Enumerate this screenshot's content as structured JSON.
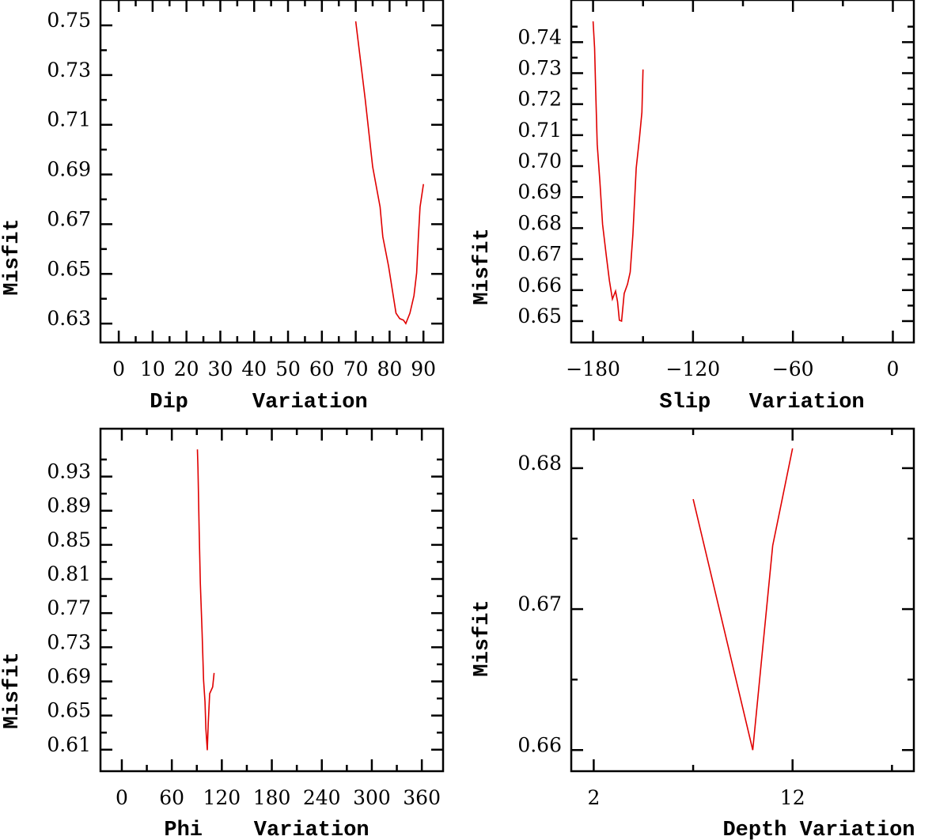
{
  "colors": {
    "line": "#e00000",
    "axes": "#000000",
    "background": "#ffffff"
  },
  "chart_data": [
    {
      "type": "line",
      "title": "",
      "xlabel": "Dip     Variation",
      "ylabel": "Misfit",
      "xlim": [
        -5.4,
        95.8
      ],
      "ylim": [
        0.6224,
        0.7602
      ],
      "x_major_ticks": [
        0,
        10,
        20,
        30,
        40,
        50,
        60,
        70,
        80,
        90
      ],
      "x_tick_labels": [
        "0",
        "10",
        "20",
        "30",
        "40",
        "50",
        "60",
        "70",
        "80",
        "90"
      ],
      "x_minor_ticks": [
        5,
        15,
        25,
        35,
        45,
        55,
        65,
        75,
        85
      ],
      "y_major_ticks": [
        0.63,
        0.65,
        0.67,
        0.69,
        0.71,
        0.73,
        0.75
      ],
      "y_tick_labels": [
        "0.63",
        "0.65",
        "0.67",
        "0.69",
        "0.71",
        "0.73",
        "0.75"
      ],
      "y_minor_ticks": [
        0.64,
        0.66,
        0.68,
        0.7,
        0.72,
        0.74
      ],
      "grid": false,
      "x": [
        70,
        72.8,
        75,
        77.2,
        78,
        79.7,
        81.9,
        83,
        84.1,
        84.8,
        86,
        87.2,
        88,
        88.5,
        89,
        90
      ],
      "y": [
        0.7516,
        0.7202,
        0.6931,
        0.6769,
        0.665,
        0.6531,
        0.6342,
        0.632,
        0.6314,
        0.63,
        0.6342,
        0.6412,
        0.6504,
        0.665,
        0.6769,
        0.6861
      ]
    },
    {
      "type": "line",
      "title": "",
      "xlabel": "Slip   Variation",
      "ylabel": "Misfit",
      "xlim": [
        -193.1,
        12.6
      ],
      "ylim": [
        0.6431,
        0.7536
      ],
      "x_major_ticks": [
        -180,
        -120,
        -60,
        0
      ],
      "x_tick_labels": [
        "−180",
        "−120",
        "−60",
        "0"
      ],
      "x_minor_ticks": [
        -150,
        -90,
        -30
      ],
      "y_major_ticks": [
        0.65,
        0.66,
        0.67,
        0.68,
        0.69,
        0.7,
        0.71,
        0.72,
        0.73,
        0.74
      ],
      "y_tick_labels": [
        "0.65",
        "0.66",
        "0.67",
        "0.68",
        "0.69",
        "0.70",
        "0.71",
        "0.72",
        "0.73",
        "0.74"
      ],
      "y_minor_ticks": [
        0.655,
        0.665,
        0.675,
        0.685,
        0.695,
        0.705,
        0.715,
        0.725,
        0.735,
        0.745
      ],
      "grid": false,
      "x": [
        -180,
        -179.1,
        -178.4,
        -177.5,
        -175.9,
        -174.3,
        -172,
        -170.2,
        -168.4,
        -166.5,
        -165.3,
        -164.2,
        -162.9,
        -161.3,
        -159.3,
        -157.7,
        -156.1,
        -154.1,
        -152.2,
        -150.7,
        -150
      ],
      "y": [
        0.7467,
        0.7381,
        0.7243,
        0.7071,
        0.695,
        0.6812,
        0.6709,
        0.6631,
        0.6571,
        0.6597,
        0.6563,
        0.6503,
        0.65,
        0.6589,
        0.6619,
        0.6658,
        0.6779,
        0.6994,
        0.7088,
        0.7174,
        0.7312
      ]
    },
    {
      "type": "line",
      "title": "",
      "xlabel": "Phi    Variation",
      "ylabel": "Misfit",
      "xlim": [
        -25.6,
        385.5
      ],
      "ylim": [
        0.5848,
        0.9861
      ],
      "x_major_ticks": [
        0,
        60,
        120,
        180,
        240,
        300,
        360
      ],
      "x_tick_labels": [
        "0",
        "60",
        "120",
        "180",
        "240",
        "300",
        "360"
      ],
      "x_minor_ticks": [
        30,
        90,
        150,
        210,
        270,
        330
      ],
      "y_major_ticks": [
        0.61,
        0.65,
        0.69,
        0.73,
        0.77,
        0.81,
        0.85,
        0.89,
        0.93
      ],
      "y_tick_labels": [
        "0.61",
        "0.65",
        "0.69",
        "0.73",
        "0.77",
        "0.81",
        "0.85",
        "0.89",
        "0.93"
      ],
      "y_minor_ticks": [
        0.63,
        0.67,
        0.71,
        0.75,
        0.79,
        0.83,
        0.87,
        0.91,
        0.95
      ],
      "grid": false,
      "x": [
        90.7,
        91.4,
        92.8,
        94.2,
        96.3,
        98.1,
        99.8,
        100.9,
        102.6,
        103.7,
        105.4,
        109,
        110.7
      ],
      "y": [
        0.9618,
        0.9404,
        0.8679,
        0.8049,
        0.7481,
        0.6914,
        0.6661,
        0.6346,
        0.6094,
        0.6409,
        0.6756,
        0.6835,
        0.6999
      ]
    },
    {
      "type": "line",
      "title": "",
      "xlabel": "Depth Variation",
      "ylabel": "Misfit",
      "xlim": [
        0.87,
        18.1
      ],
      "ylim": [
        0.6585,
        0.6828
      ],
      "x_major_ticks": [
        2,
        12
      ],
      "x_tick_labels": [
        "2",
        "12"
      ],
      "x_minor_ticks": [
        7,
        17
      ],
      "y_major_ticks": [
        0.66,
        0.67,
        0.68
      ],
      "y_tick_labels": [
        "0.66",
        "0.67",
        "0.68"
      ],
      "y_minor_ticks": [
        0.665,
        0.675
      ],
      "grid": false,
      "x": [
        7,
        10,
        11,
        12
      ],
      "y": [
        0.6778,
        0.66,
        0.6745,
        0.6814
      ]
    }
  ]
}
